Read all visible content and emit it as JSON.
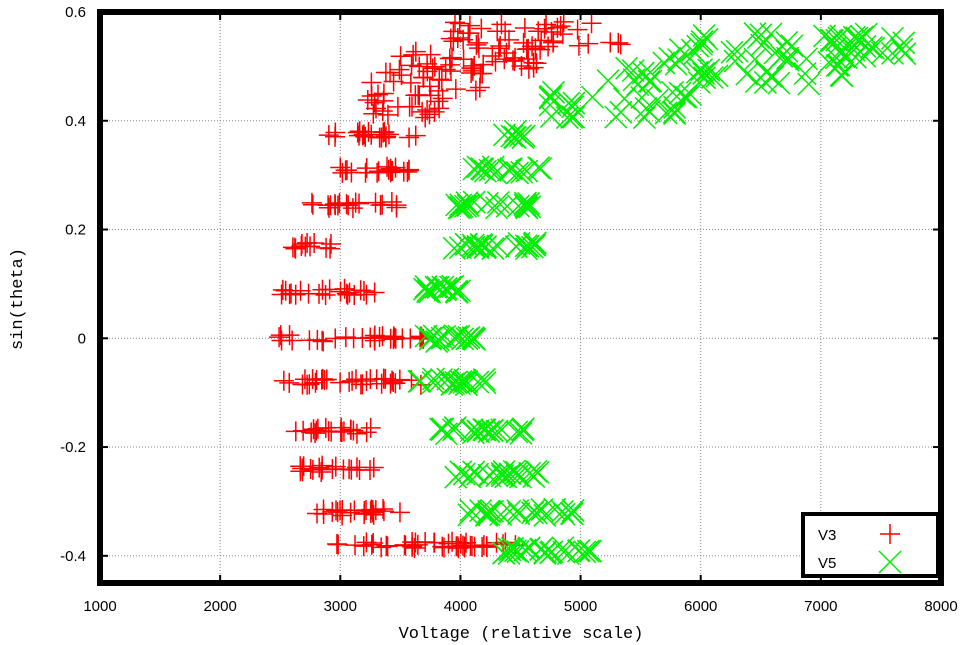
{
  "chart_data": {
    "type": "scatter",
    "title": "",
    "xlabel": "Voltage (relative scale)",
    "ylabel": "sin(theta)",
    "xlim": [
      1000,
      8000
    ],
    "ylim": [
      -0.45,
      0.6
    ],
    "xticks": [
      1000,
      2000,
      3000,
      4000,
      5000,
      6000,
      7000,
      8000
    ],
    "yticks": [
      -0.4,
      -0.2,
      0,
      0.2,
      0.4,
      0.6
    ],
    "xtick_labels": [
      "1000",
      "2000",
      "3000",
      "4000",
      "5000",
      "6000",
      "7000",
      "8000"
    ],
    "ytick_labels": [
      "-0.4",
      "-0.2",
      "0",
      "0.2",
      "0.4",
      "0.6"
    ],
    "grid": true,
    "legend_position": "bottom-right",
    "series": [
      {
        "name": "V3",
        "marker": "plus",
        "color": "#ff0000",
        "bands": [
          {
            "y": -0.38,
            "xmin": 2950,
            "xmax": 4500,
            "n": 44
          },
          {
            "y": -0.32,
            "xmin": 2800,
            "xmax": 3500,
            "n": 24
          },
          {
            "y": -0.24,
            "xmin": 2600,
            "xmax": 3300,
            "n": 20
          },
          {
            "y": -0.17,
            "xmin": 2600,
            "xmax": 3300,
            "n": 20
          },
          {
            "y": -0.08,
            "xmin": 2500,
            "xmax": 3700,
            "n": 32
          },
          {
            "y": 0.0,
            "xmin": 2450,
            "xmax": 3700,
            "n": 30
          },
          {
            "y": 0.085,
            "xmin": 2500,
            "xmax": 3350,
            "n": 22
          },
          {
            "y": 0.17,
            "xmin": 2600,
            "xmax": 2950,
            "n": 12
          },
          {
            "y": 0.245,
            "xmin": 2650,
            "xmax": 3500,
            "n": 20
          },
          {
            "y": 0.31,
            "xmin": 2900,
            "xmax": 3600,
            "n": 20
          },
          {
            "y": 0.375,
            "xmin": 2900,
            "xmax": 3700,
            "n": 20
          },
          {
            "y": 0.43,
            "xmin": 3150,
            "xmax": 3900,
            "n": 26
          },
          {
            "y": 0.48,
            "xmin": 3250,
            "xmax": 4200,
            "n": 28
          },
          {
            "y": 0.52,
            "xmin": 3500,
            "xmax": 4700,
            "n": 34
          },
          {
            "y": 0.56,
            "xmin": 3900,
            "xmax": 5500,
            "n": 36
          }
        ]
      },
      {
        "name": "V5",
        "marker": "cross",
        "color": "#00ee00",
        "bands": [
          {
            "y": -0.39,
            "xmin": 4350,
            "xmax": 5100,
            "n": 26
          },
          {
            "y": -0.32,
            "xmin": 4050,
            "xmax": 5000,
            "n": 24
          },
          {
            "y": -0.25,
            "xmin": 3950,
            "xmax": 4650,
            "n": 22
          },
          {
            "y": -0.17,
            "xmin": 3800,
            "xmax": 4550,
            "n": 22
          },
          {
            "y": -0.08,
            "xmin": 3650,
            "xmax": 4250,
            "n": 18
          },
          {
            "y": 0.0,
            "xmin": 3700,
            "xmax": 4150,
            "n": 18
          },
          {
            "y": 0.09,
            "xmin": 3700,
            "xmax": 4100,
            "n": 16
          },
          {
            "y": 0.17,
            "xmin": 3800,
            "xmax": 4650,
            "n": 24
          },
          {
            "y": 0.245,
            "xmin": 3950,
            "xmax": 4600,
            "n": 20
          },
          {
            "y": 0.31,
            "xmin": 4100,
            "xmax": 4700,
            "n": 16
          },
          {
            "y": 0.375,
            "xmin": 4300,
            "xmax": 4550,
            "n": 8
          },
          {
            "y": 0.43,
            "xmin": 4700,
            "xmax": 6000,
            "n": 30
          },
          {
            "y": 0.49,
            "xmin": 5200,
            "xmax": 7200,
            "n": 40
          },
          {
            "y": 0.54,
            "xmin": 5800,
            "xmax": 7700,
            "n": 50
          }
        ]
      }
    ]
  }
}
